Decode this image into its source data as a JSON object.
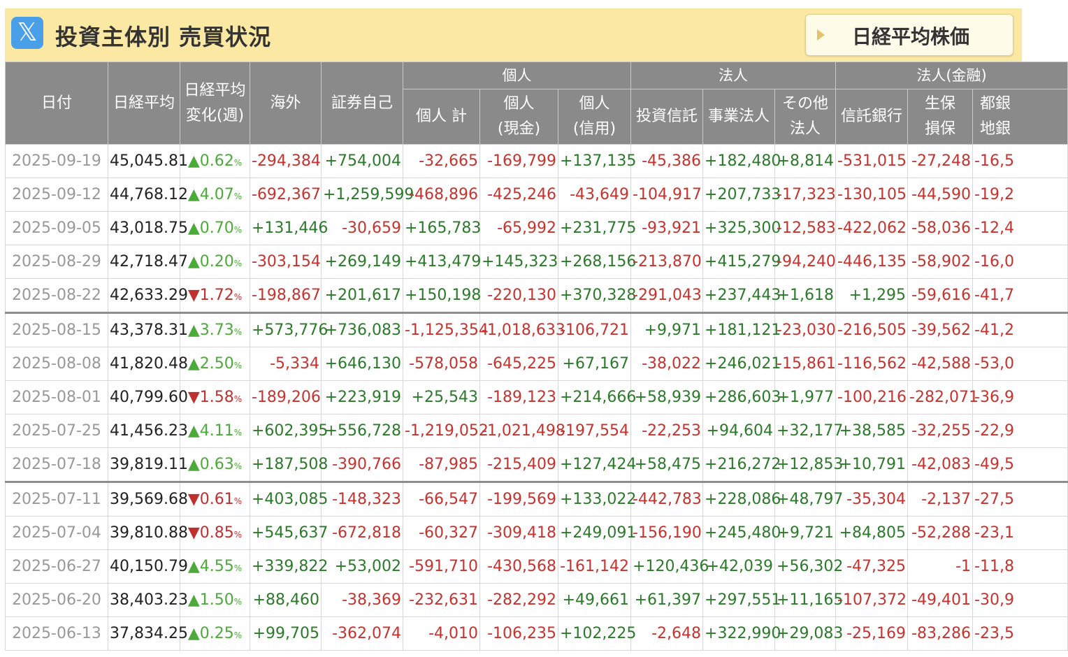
{
  "header": {
    "x_icon": "𝕏",
    "title": "投資主体別 売買状況",
    "link_label": "日経平均株価"
  },
  "columns": {
    "date": "日付",
    "nikkei": "日経平均",
    "change_l1": "日経平均",
    "change_l2": "変化(週)",
    "foreign": "海外",
    "securities": "証券自己",
    "group_individual": "個人",
    "ind_total": "個人 計",
    "ind_cash_l1": "個人",
    "ind_cash_l2": "(現金)",
    "ind_credit_l1": "個人",
    "ind_credit_l2": "(信用)",
    "group_corp": "法人",
    "inv_trust": "投資信託",
    "business": "事業法人",
    "other_l1": "その他",
    "other_l2": "法人",
    "group_fin": "法人(金融)",
    "trust_bank": "信託銀行",
    "insurance_l1": "生保",
    "insurance_l2": "損保",
    "city_l1": "都銀",
    "city_l2": "地銀"
  },
  "rows": [
    {
      "date": "2025-09-19",
      "nikkei": "45,045.81",
      "dir": "up",
      "chg": "0.62",
      "foreign": "-294,384",
      "sec": "+754,004",
      "ind": "-32,665",
      "cash": "-169,799",
      "credit": "+137,135",
      "trust": "-45,386",
      "biz": "+182,480",
      "other": "+8,814",
      "tbank": "-531,015",
      "ins": "-27,248",
      "city": "-16,5"
    },
    {
      "date": "2025-09-12",
      "nikkei": "44,768.12",
      "dir": "up",
      "chg": "4.07",
      "foreign": "-692,367",
      "sec": "+1,259,599",
      "ind": "-468,896",
      "cash": "-425,246",
      "credit": "-43,649",
      "trust": "-104,917",
      "biz": "+207,733",
      "other": "-17,323",
      "tbank": "-130,105",
      "ins": "-44,590",
      "city": "-19,2"
    },
    {
      "date": "2025-09-05",
      "nikkei": "43,018.75",
      "dir": "up",
      "chg": "0.70",
      "foreign": "+131,446",
      "sec": "-30,659",
      "ind": "+165,783",
      "cash": "-65,992",
      "credit": "+231,775",
      "trust": "-93,921",
      "biz": "+325,300",
      "other": "-12,583",
      "tbank": "-422,062",
      "ins": "-58,036",
      "city": "-12,4"
    },
    {
      "date": "2025-08-29",
      "nikkei": "42,718.47",
      "dir": "up",
      "chg": "0.20",
      "foreign": "-303,154",
      "sec": "+269,149",
      "ind": "+413,479",
      "cash": "+145,323",
      "credit": "+268,156",
      "trust": "-213,870",
      "biz": "+415,279",
      "other": "-94,240",
      "tbank": "-446,135",
      "ins": "-58,902",
      "city": "-16,0"
    },
    {
      "date": "2025-08-22",
      "nikkei": "42,633.29",
      "dir": "dn",
      "chg": "1.72",
      "foreign": "-198,867",
      "sec": "+201,617",
      "ind": "+150,198",
      "cash": "-220,130",
      "credit": "+370,328",
      "trust": "-291,043",
      "biz": "+237,443",
      "other": "+1,618",
      "tbank": "+1,295",
      "ins": "-59,616",
      "city": "-41,7"
    },
    {
      "date": "2025-08-15",
      "nikkei": "43,378.31",
      "dir": "up",
      "chg": "3.73",
      "foreign": "+573,776",
      "sec": "+736,083",
      "ind": "-1,125,354",
      "cash": "-1,018,633",
      "credit": "-106,721",
      "trust": "+9,971",
      "biz": "+181,121",
      "other": "-23,030",
      "tbank": "-216,505",
      "ins": "-39,562",
      "city": "-41,2"
    },
    {
      "date": "2025-08-08",
      "nikkei": "41,820.48",
      "dir": "up",
      "chg": "2.50",
      "foreign": "-5,334",
      "sec": "+646,130",
      "ind": "-578,058",
      "cash": "-645,225",
      "credit": "+67,167",
      "trust": "-38,022",
      "biz": "+246,021",
      "other": "-15,861",
      "tbank": "-116,562",
      "ins": "-42,588",
      "city": "-53,0"
    },
    {
      "date": "2025-08-01",
      "nikkei": "40,799.60",
      "dir": "dn",
      "chg": "1.58",
      "foreign": "-189,206",
      "sec": "+223,919",
      "ind": "+25,543",
      "cash": "-189,123",
      "credit": "+214,666",
      "trust": "+58,939",
      "biz": "+286,603",
      "other": "+1,977",
      "tbank": "-100,216",
      "ins": "-282,071",
      "city": "-36,9"
    },
    {
      "date": "2025-07-25",
      "nikkei": "41,456.23",
      "dir": "up",
      "chg": "4.11",
      "foreign": "+602,395",
      "sec": "+556,728",
      "ind": "-1,219,052",
      "cash": "-1,021,498",
      "credit": "-197,554",
      "trust": "-22,253",
      "biz": "+94,604",
      "other": "+32,177",
      "tbank": "+38,585",
      "ins": "-32,255",
      "city": "-22,9"
    },
    {
      "date": "2025-07-18",
      "nikkei": "39,819.11",
      "dir": "up",
      "chg": "0.63",
      "foreign": "+187,508",
      "sec": "-390,766",
      "ind": "-87,985",
      "cash": "-215,409",
      "credit": "+127,424",
      "trust": "+58,475",
      "biz": "+216,272",
      "other": "+12,853",
      "tbank": "+10,791",
      "ins": "-42,083",
      "city": "-49,5"
    },
    {
      "date": "2025-07-11",
      "nikkei": "39,569.68",
      "dir": "dn",
      "chg": "0.61",
      "foreign": "+403,085",
      "sec": "-148,323",
      "ind": "-66,547",
      "cash": "-199,569",
      "credit": "+133,022",
      "trust": "-442,783",
      "biz": "+228,086",
      "other": "+48,797",
      "tbank": "-35,304",
      "ins": "-2,137",
      "city": "-27,5"
    },
    {
      "date": "2025-07-04",
      "nikkei": "39,810.88",
      "dir": "dn",
      "chg": "0.85",
      "foreign": "+545,637",
      "sec": "-672,818",
      "ind": "-60,327",
      "cash": "-309,418",
      "credit": "+249,091",
      "trust": "-156,190",
      "biz": "+245,480",
      "other": "+9,721",
      "tbank": "+84,805",
      "ins": "-52,288",
      "city": "-23,1"
    },
    {
      "date": "2025-06-27",
      "nikkei": "40,150.79",
      "dir": "up",
      "chg": "4.55",
      "foreign": "+339,822",
      "sec": "+53,002",
      "ind": "-591,710",
      "cash": "-430,568",
      "credit": "-161,142",
      "trust": "+120,436",
      "biz": "+42,039",
      "other": "+56,302",
      "tbank": "-47,325",
      "ins": "-1",
      "city": "-11,8"
    },
    {
      "date": "2025-06-20",
      "nikkei": "38,403.23",
      "dir": "up",
      "chg": "1.50",
      "foreign": "+88,460",
      "sec": "-38,369",
      "ind": "-232,631",
      "cash": "-282,292",
      "credit": "+49,661",
      "trust": "+61,397",
      "biz": "+297,551",
      "other": "+11,165",
      "tbank": "-107,372",
      "ins": "-49,401",
      "city": "-30,9"
    },
    {
      "date": "2025-06-13",
      "nikkei": "37,834.25",
      "dir": "up",
      "chg": "0.25",
      "foreign": "+99,705",
      "sec": "-362,074",
      "ind": "-4,010",
      "cash": "-106,235",
      "credit": "+102,225",
      "trust": "-2,648",
      "biz": "+322,990",
      "other": "+29,083",
      "tbank": "-25,169",
      "ins": "-83,286",
      "city": "-23,5"
    }
  ],
  "symbols": {
    "up": "▲",
    "dn": "▼",
    "pct": "%"
  },
  "colors": {
    "header_bg": "#fbe8a3",
    "th_bg": "#8a8a8a",
    "positive": "#2a7a2a",
    "negative": "#c8322e",
    "up": "#4caa3a",
    "down": "#c0302f"
  }
}
